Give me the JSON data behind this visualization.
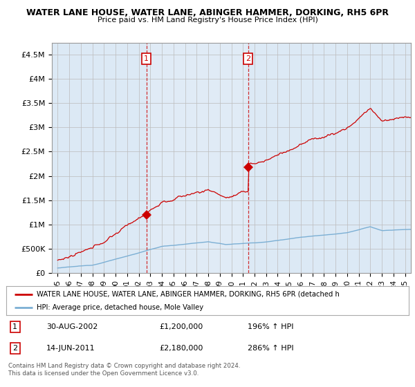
{
  "title": "WATER LANE HOUSE, WATER LANE, ABINGER HAMMER, DORKING, RH5 6PR",
  "subtitle": "Price paid vs. HM Land Registry's House Price Index (HPI)",
  "ylim": [
    0,
    4750000
  ],
  "yticks": [
    0,
    500000,
    1000000,
    1500000,
    2000000,
    2500000,
    3000000,
    3500000,
    4000000,
    4500000
  ],
  "ytick_labels": [
    "£0",
    "£500K",
    "£1M",
    "£1.5M",
    "£2M",
    "£2.5M",
    "£3M",
    "£3.5M",
    "£4M",
    "£4.5M"
  ],
  "hpi_color": "#7bafd4",
  "price_color": "#cc0000",
  "chart_bg": "#dce9f5",
  "plot_bg": "#ffffff",
  "sale1_date": 2002.66,
  "sale1_price": 1200000,
  "sale2_date": 2011.45,
  "sale2_price": 2180000,
  "legend_line1": "WATER LANE HOUSE, WATER LANE, ABINGER HAMMER, DORKING, RH5 6PR (detached h",
  "legend_line2": "HPI: Average price, detached house, Mole Valley",
  "table_row1": [
    "1",
    "30-AUG-2002",
    "£1,200,000",
    "196% ↑ HPI"
  ],
  "table_row2": [
    "2",
    "14-JUN-2011",
    "£2,180,000",
    "286% ↑ HPI"
  ],
  "footnote": "Contains HM Land Registry data © Crown copyright and database right 2024.\nThis data is licensed under the Open Government Licence v3.0.",
  "xmin": 1994.5,
  "xmax": 2025.5
}
